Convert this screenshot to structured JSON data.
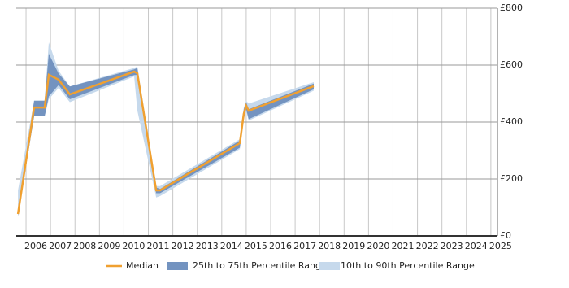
{
  "chart_data": {
    "type": "line",
    "x": [
      2005.67,
      2006.33,
      2006.76,
      2006.93,
      2007.33,
      2007.79,
      2010.42,
      2010.55,
      2011.32,
      2011.48,
      2014.74,
      2014.9,
      2015.0,
      2015.1,
      2017.76
    ],
    "series": [
      {
        "name": "10th to 90th Percentile Range",
        "color": "#c6d9ec",
        "low": [
          70,
          420,
          420,
          480,
          520,
          470,
          560,
          440,
          135,
          140,
          305,
          410,
          440,
          405,
          510
        ],
        "high": [
          160,
          475,
          475,
          680,
          580,
          525,
          590,
          595,
          175,
          175,
          340,
          450,
          475,
          465,
          540
        ]
      },
      {
        "name": "25th to 75th Percentile Range",
        "color": "#7393c0",
        "low": [
          70,
          420,
          420,
          490,
          530,
          480,
          565,
          565,
          150,
          150,
          310,
          415,
          445,
          410,
          515
        ],
        "high": [
          85,
          475,
          475,
          640,
          570,
          525,
          585,
          590,
          170,
          165,
          335,
          445,
          470,
          445,
          535
        ]
      },
      {
        "name": "Median",
        "color": "#f0a030",
        "values": [
          77,
          451,
          451,
          566,
          549,
          497,
          577,
          571,
          160,
          160,
          326,
          429,
          457,
          440,
          526
        ]
      }
    ],
    "xlim": [
      2005.6,
      2025.27
    ],
    "xticks": [
      2006,
      2007,
      2008,
      2009,
      2010,
      2011,
      2012,
      2013,
      2014,
      2015,
      2016,
      2017,
      2018,
      2019,
      2020,
      2021,
      2022,
      2023,
      2024,
      2025
    ],
    "ylim": [
      0,
      800
    ],
    "yticks": [
      {
        "value": 0,
        "label": "£0"
      },
      {
        "value": 200,
        "label": "£200"
      },
      {
        "value": 400,
        "label": "£400"
      },
      {
        "value": 600,
        "label": "£600"
      },
      {
        "value": 800,
        "label": "£800"
      }
    ],
    "grid": true,
    "legend": "bottom"
  }
}
